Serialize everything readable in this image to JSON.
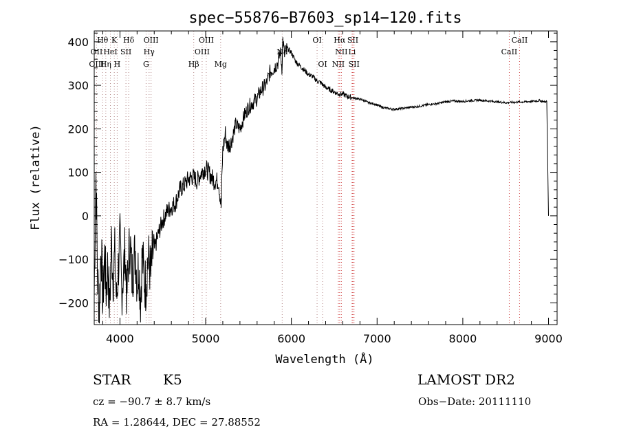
{
  "chart_data": {
    "type": "line",
    "title": "spec−55876−B7603_sp14−120.fits",
    "xlabel": "Wavelength (Å)",
    "ylabel": "Flux (relative)",
    "xlim": [
      3700,
      9100
    ],
    "ylim": [
      -250,
      425
    ],
    "xticks": [
      4000,
      5000,
      6000,
      7000,
      8000,
      9000
    ],
    "yticks": [
      -200,
      -100,
      0,
      100,
      200,
      300,
      400
    ],
    "x_tick_labels": [
      "4000",
      "5000",
      "6000",
      "7000",
      "8000",
      "9000"
    ],
    "y_tick_labels": [
      "−200",
      "−100",
      "0",
      "100",
      "200",
      "300",
      "400"
    ],
    "line_color": "#000000",
    "marker_color_absorption": "#b08080",
    "marker_color_emission": "#cc3333",
    "series": [
      {
        "x": [
          3700,
          3720,
          3740,
          3760,
          3780,
          3800,
          3820,
          3840,
          3860,
          3880,
          3900,
          3920,
          3940,
          3960,
          3980,
          4000,
          4020,
          4040,
          4060,
          4080,
          4100,
          4120,
          4140,
          4160,
          4180,
          4200,
          4220,
          4240,
          4260,
          4280,
          4300,
          4320,
          4340,
          4360,
          4380,
          4400,
          4450,
          4500,
          4550,
          4600,
          4650,
          4700,
          4750,
          4800,
          4850,
          4900,
          4950,
          5000,
          5050,
          5100,
          5150,
          5180,
          5200,
          5230,
          5250,
          5300,
          5350,
          5400,
          5450,
          5500,
          5550,
          5600,
          5650,
          5700,
          5750,
          5800,
          5850,
          5870,
          5890,
          5900,
          5920,
          5950,
          6000,
          6050,
          6100,
          6150,
          6200,
          6250,
          6300,
          6350,
          6400,
          6450,
          6500,
          6550,
          6600,
          6650,
          6700,
          6750,
          6800,
          6850,
          6900,
          6950,
          7000,
          7050,
          7100,
          7150,
          7200,
          7300,
          7400,
          7500,
          7600,
          7700,
          7800,
          7900,
          8000,
          8100,
          8200,
          8300,
          8400,
          8500,
          8600,
          8700,
          8800,
          8900,
          8950,
          8980,
          9000
        ],
        "y": [
          -180,
          100,
          -150,
          -210,
          -60,
          -200,
          -90,
          -170,
          -110,
          -220,
          -60,
          -140,
          -90,
          -200,
          -120,
          -60,
          -170,
          -130,
          -80,
          -190,
          -100,
          -60,
          -140,
          -110,
          -80,
          -150,
          -110,
          -190,
          -90,
          -140,
          -160,
          -110,
          -100,
          -140,
          -90,
          -80,
          -40,
          -10,
          10,
          20,
          30,
          60,
          70,
          85,
          90,
          80,
          100,
          110,
          95,
          80,
          80,
          20,
          150,
          190,
          160,
          170,
          210,
          200,
          230,
          250,
          260,
          270,
          290,
          300,
          330,
          340,
          355,
          380,
          340,
          405,
          370,
          385,
          375,
          355,
          345,
          335,
          325,
          320,
          310,
          305,
          295,
          290,
          285,
          280,
          280,
          275,
          272,
          270,
          268,
          265,
          260,
          258,
          255,
          250,
          248,
          246,
          245,
          247,
          250,
          252,
          256,
          258,
          262,
          264,
          263,
          265,
          266,
          264,
          262,
          260,
          261,
          262,
          263,
          265,
          262,
          263,
          0
        ]
      }
    ],
    "line_markers": [
      {
        "label": "Hθ",
        "x": 3798,
        "row": 0
      },
      {
        "label": "K",
        "x": 3934,
        "row": 0
      },
      {
        "label": "Hδ",
        "x": 4102,
        "row": 0
      },
      {
        "label": "OIII",
        "x": 4363,
        "row": 0
      },
      {
        "label": "OIII",
        "x": 5007,
        "row": 0
      },
      {
        "label": "OI",
        "x": 6300,
        "row": 0
      },
      {
        "label": "Hα",
        "x": 6563,
        "row": 0
      },
      {
        "label": "SII",
        "x": 6717,
        "row": 0
      },
      {
        "label": "CaII",
        "x": 8662,
        "row": 0
      },
      {
        "label": "OII",
        "x": 3727,
        "row": 1
      },
      {
        "label": "HeI",
        "x": 3889,
        "row": 1
      },
      {
        "label": "SII",
        "x": 4070,
        "row": 1
      },
      {
        "label": "Hγ",
        "x": 4340,
        "row": 1
      },
      {
        "label": "OIII",
        "x": 4959,
        "row": 1
      },
      {
        "label": "Na",
        "x": 5893,
        "row": 1
      },
      {
        "label": "NII",
        "x": 6583,
        "row": 1
      },
      {
        "label": "Li",
        "x": 6708,
        "row": 1
      },
      {
        "label": "CaII",
        "x": 8542,
        "row": 1
      },
      {
        "label": "OIII",
        "x": 3727,
        "row": 2
      },
      {
        "label": "Hη",
        "x": 3835,
        "row": 2
      },
      {
        "label": "H",
        "x": 3968,
        "row": 2
      },
      {
        "label": "G",
        "x": 4305,
        "row": 2
      },
      {
        "label": "Hβ",
        "x": 4861,
        "row": 2
      },
      {
        "label": "Mg",
        "x": 5175,
        "row": 2
      },
      {
        "label": "OI",
        "x": 6364,
        "row": 2
      },
      {
        "label": "NII",
        "x": 6548,
        "row": 2
      },
      {
        "label": "SII",
        "x": 6731,
        "row": 2
      }
    ]
  },
  "info": {
    "object_class": "STAR",
    "subclass": "K5",
    "survey": "LAMOST DR2",
    "cz": "cz = −90.7 ± 8.7 km/s",
    "obs_date": "Obs−Date: 20111110",
    "coords": "RA =    1.28644, DEC =   27.88552"
  }
}
